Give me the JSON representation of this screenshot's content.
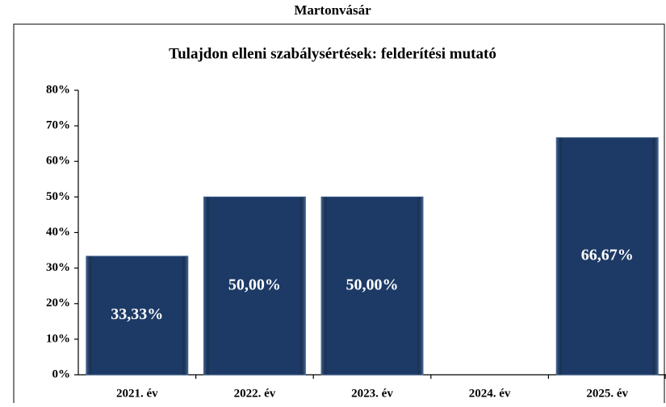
{
  "chart_data": {
    "type": "bar",
    "header": "Martonvásár",
    "title": "Tulajdon elleni szabálysértések: felderítési mutató",
    "categories": [
      "2021. év",
      "2022. év",
      "2023. év",
      "2024. év",
      "2025. év"
    ],
    "values": [
      33.33,
      50,
      50,
      null,
      66.67
    ],
    "value_labels": [
      "33,33%",
      "50,00%",
      "50,00%",
      null,
      "66,67%"
    ],
    "color": "#1d3a66",
    "ylim": [
      0,
      80
    ],
    "yticks": [
      {
        "value": 0,
        "label": "0%"
      },
      {
        "value": 10,
        "label": "10%"
      },
      {
        "value": 20,
        "label": "20%"
      },
      {
        "value": 30,
        "label": "30%"
      },
      {
        "value": 40,
        "label": "40%"
      },
      {
        "value": 50,
        "label": "50%"
      },
      {
        "value": 60,
        "label": "60%"
      },
      {
        "value": 70,
        "label": "70%"
      },
      {
        "value": 80,
        "label": "80%"
      }
    ],
    "grid": false
  }
}
